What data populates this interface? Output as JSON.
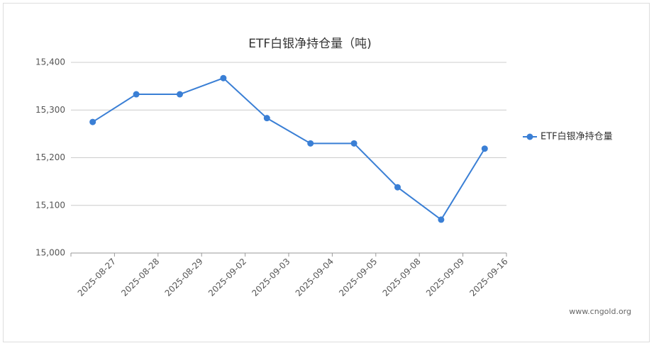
{
  "chart_data": {
    "type": "line",
    "title": "ETF白银净持仓量（吨)",
    "categories": [
      "2025-08-27",
      "2025-08-28",
      "2025-08-29",
      "2025-09-02",
      "2025-09-03",
      "2025-09-04",
      "2025-09-05",
      "2025-09-08",
      "2025-09-09",
      "2025-09-16"
    ],
    "series": [
      {
        "name": "ETF白银净持仓量",
        "color": "#3a7fd5",
        "values": [
          15275,
          15333,
          15333,
          15367,
          15283,
          15230,
          15230,
          15138,
          15070,
          15219
        ]
      }
    ],
    "ylim": [
      15000,
      15400
    ],
    "yticks": [
      {
        "value": 15000,
        "label": "15,000"
      },
      {
        "value": 15100,
        "label": "15,100"
      },
      {
        "value": 15200,
        "label": "15,200"
      },
      {
        "value": 15300,
        "label": "15,300"
      },
      {
        "value": 15400,
        "label": "15,400"
      }
    ],
    "grid": true,
    "legend": "right",
    "watermark": "www.cngold.org"
  }
}
